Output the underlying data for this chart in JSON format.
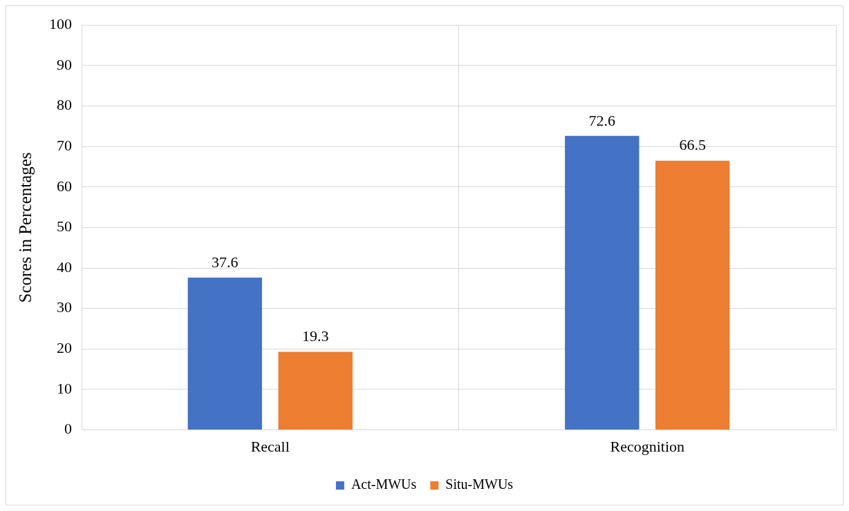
{
  "chart_data": {
    "type": "bar",
    "ylabel": "Scores in Percentages",
    "categories": [
      "Recall",
      "Recognition"
    ],
    "series": [
      {
        "name": "Act-MWUs",
        "color": "#4472c4",
        "values": [
          37.6,
          72.6
        ]
      },
      {
        "name": "Situ-MWUs",
        "color": "#ed7d31",
        "values": [
          19.3,
          66.5
        ]
      }
    ],
    "ylim": [
      0,
      100
    ],
    "yticks": [
      0,
      10,
      20,
      30,
      40,
      50,
      60,
      70,
      80,
      90,
      100
    ],
    "grid": true,
    "legend": "bottom",
    "data_labels": true
  }
}
